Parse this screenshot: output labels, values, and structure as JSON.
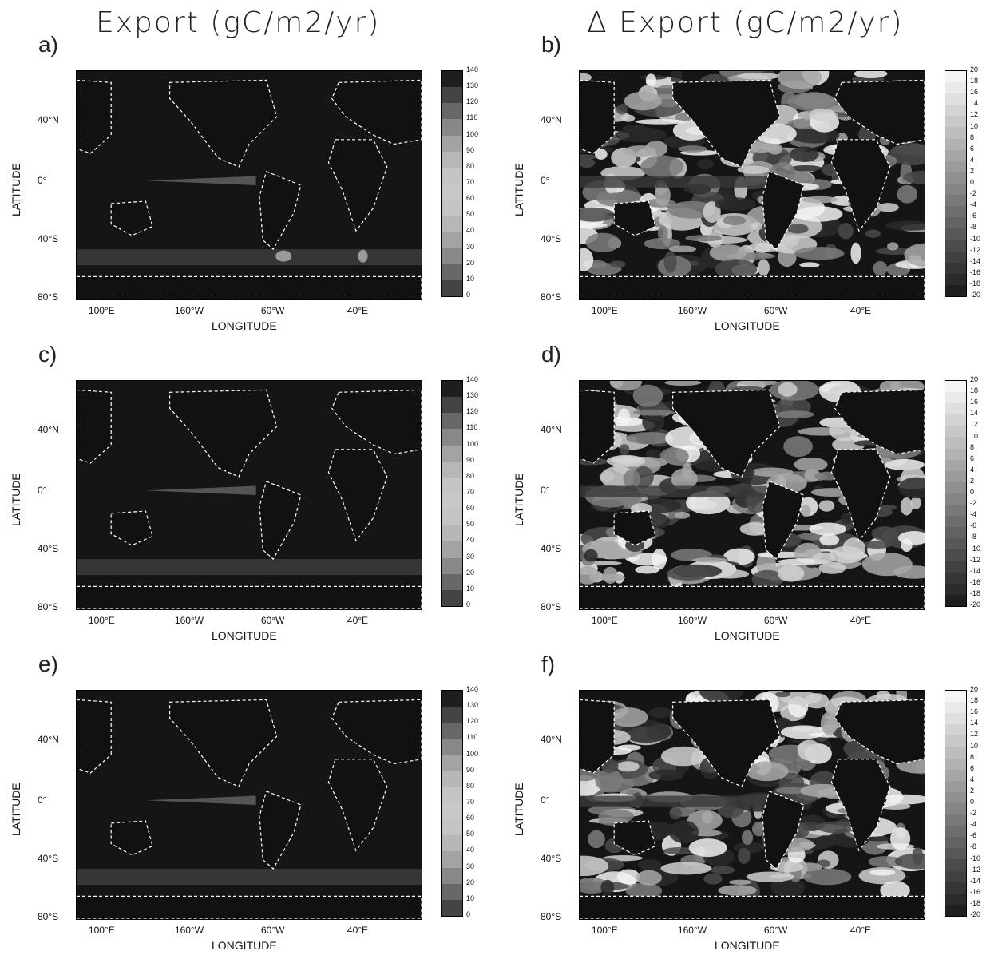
{
  "column_titles": {
    "left": "Export (gC/m2/yr)",
    "right": "Δ Export (gC/m2/yr)"
  },
  "axes": {
    "lat_title": "LATITUDE",
    "lon_title": "LONGITUDE",
    "lat_ticks": [
      "40°N",
      "0°",
      "40°S",
      "80°S"
    ],
    "lon_ticks": [
      "100°E",
      "160°W",
      "60°W",
      "40°E"
    ]
  },
  "colorbars": {
    "export_levels": [
      "140",
      "130",
      "120",
      "110",
      "100",
      "90",
      "80",
      "70",
      "60",
      "50",
      "40",
      "30",
      "20",
      "10",
      "0"
    ],
    "delta_levels": [
      "20",
      "18",
      "16",
      "14",
      "12",
      "10",
      "8",
      "6",
      "4",
      "2",
      "0",
      "-2",
      "-4",
      "-6",
      "-8",
      "-10",
      "-12",
      "-14",
      "-16",
      "-18",
      "-20"
    ]
  },
  "panels": [
    {
      "label": "a)",
      "kind": "export"
    },
    {
      "label": "b)",
      "kind": "delta"
    },
    {
      "label": "c)",
      "kind": "export"
    },
    {
      "label": "d)",
      "kind": "delta"
    },
    {
      "label": "e)",
      "kind": "export"
    },
    {
      "label": "f)",
      "kind": "delta"
    }
  ],
  "colors": {
    "ocean_dark": "#151515",
    "coast_dash": "#ffffff",
    "band_gray": "#6e6e6e",
    "light_gray": "#d8d8d8"
  }
}
